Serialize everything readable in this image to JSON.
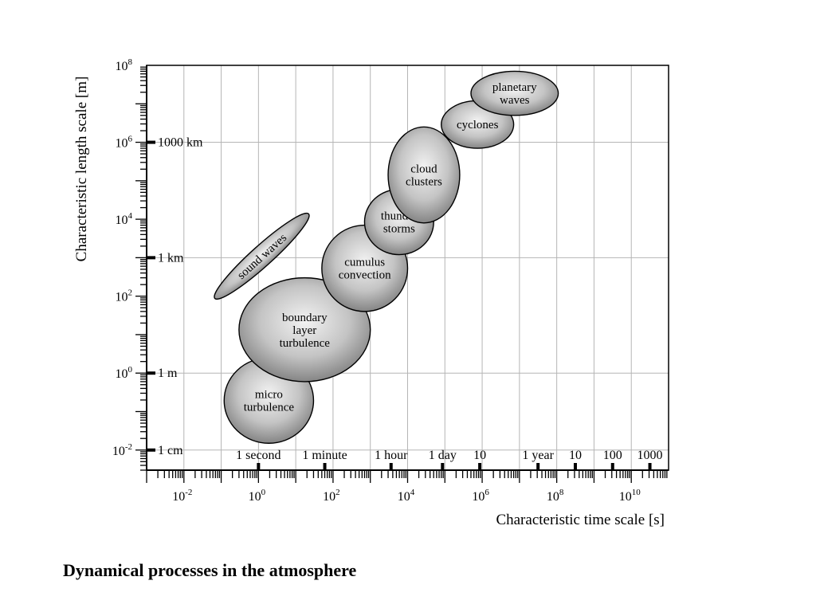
{
  "caption": "Dynamical processes in the atmosphere",
  "chart_data": {
    "type": "scatter",
    "xlabel": "Characteristic time scale [s]",
    "ylabel": "Characteristic length scale [m]",
    "x_scale": "log",
    "y_scale": "log",
    "xlim": [
      0.001,
      100000000000.0
    ],
    "ylim": [
      0.003,
      100000000.0
    ],
    "grid": true,
    "x_tick_labels": [
      {
        "value": 0.01,
        "base": "10",
        "exp": "-2"
      },
      {
        "value": 1,
        "base": "10",
        "exp": "0"
      },
      {
        "value": 100,
        "base": "10",
        "exp": "2"
      },
      {
        "value": 10000,
        "base": "10",
        "exp": "4"
      },
      {
        "value": 1000000,
        "base": "10",
        "exp": "6"
      },
      {
        "value": 100000000,
        "base": "10",
        "exp": "8"
      },
      {
        "value": 10000000000,
        "base": "10",
        "exp": "10"
      }
    ],
    "y_tick_labels": [
      {
        "value": 0.01,
        "base": "10",
        "exp": "-2"
      },
      {
        "value": 1,
        "base": "10",
        "exp": "0"
      },
      {
        "value": 100,
        "base": "10",
        "exp": "2"
      },
      {
        "value": 10000,
        "base": "10",
        "exp": "4"
      },
      {
        "value": 1000000,
        "base": "10",
        "exp": "6"
      },
      {
        "value": 100000000,
        "base": "10",
        "exp": "8"
      }
    ],
    "y_unit_labels": [
      {
        "value": 0.01,
        "label": "1 cm"
      },
      {
        "value": 1,
        "label": "1 m"
      },
      {
        "value": 1000,
        "label": "1 km"
      },
      {
        "value": 1000000,
        "label": "1000 km"
      }
    ],
    "x_unit_labels": [
      {
        "value": 1,
        "label": "1 second"
      },
      {
        "value": 60,
        "label": "1 minute"
      },
      {
        "value": 3600,
        "label": "1 hour"
      },
      {
        "value": 86400,
        "label": "1 day"
      },
      {
        "value": 864000,
        "label": "10"
      },
      {
        "value": 31536000,
        "label": "1 year"
      },
      {
        "value": 315360000,
        "label": "10"
      },
      {
        "value": 3153600000,
        "label": "100"
      },
      {
        "value": 31536000000,
        "label": "1000"
      }
    ],
    "series": [
      {
        "name": "micro turbulence",
        "lines": [
          "micro",
          "turbulence"
        ],
        "x_range": [
          0.12,
          30
        ],
        "y_range": [
          0.015,
          2.5
        ]
      },
      {
        "name": "boundary layer turbulence",
        "lines": [
          "boundary",
          "layer",
          "turbulence"
        ],
        "x_range": [
          0.3,
          1000
        ],
        "y_range": [
          0.6,
          300
        ]
      },
      {
        "name": "sound waves",
        "lines": [
          "sound waves"
        ],
        "x_range": [
          0.06,
          25
        ],
        "y_range": [
          100,
          12000
        ],
        "angle": -42
      },
      {
        "name": "cumulus convection",
        "lines": [
          "cumulus",
          "convection"
        ],
        "x_range": [
          50,
          10000
        ],
        "y_range": [
          40,
          7000
        ]
      },
      {
        "name": "thunder storms",
        "lines": [
          "thunder",
          "storms"
        ],
        "x_range": [
          700,
          50000
        ],
        "y_range": [
          1200,
          60000
        ]
      },
      {
        "name": "cloud clusters",
        "lines": [
          "cloud",
          "clusters"
        ],
        "x_range": [
          3000,
          250000
        ],
        "y_range": [
          8000,
          2500000
        ]
      },
      {
        "name": "cyclones",
        "lines": [
          "cyclones"
        ],
        "x_range": [
          80000,
          7000000
        ],
        "y_range": [
          700000,
          12000000
        ]
      },
      {
        "name": "planetary waves",
        "lines": [
          "planetary",
          "waves"
        ],
        "x_range": [
          500000,
          110000000
        ],
        "y_range": [
          5000000,
          70000000
        ]
      }
    ]
  }
}
